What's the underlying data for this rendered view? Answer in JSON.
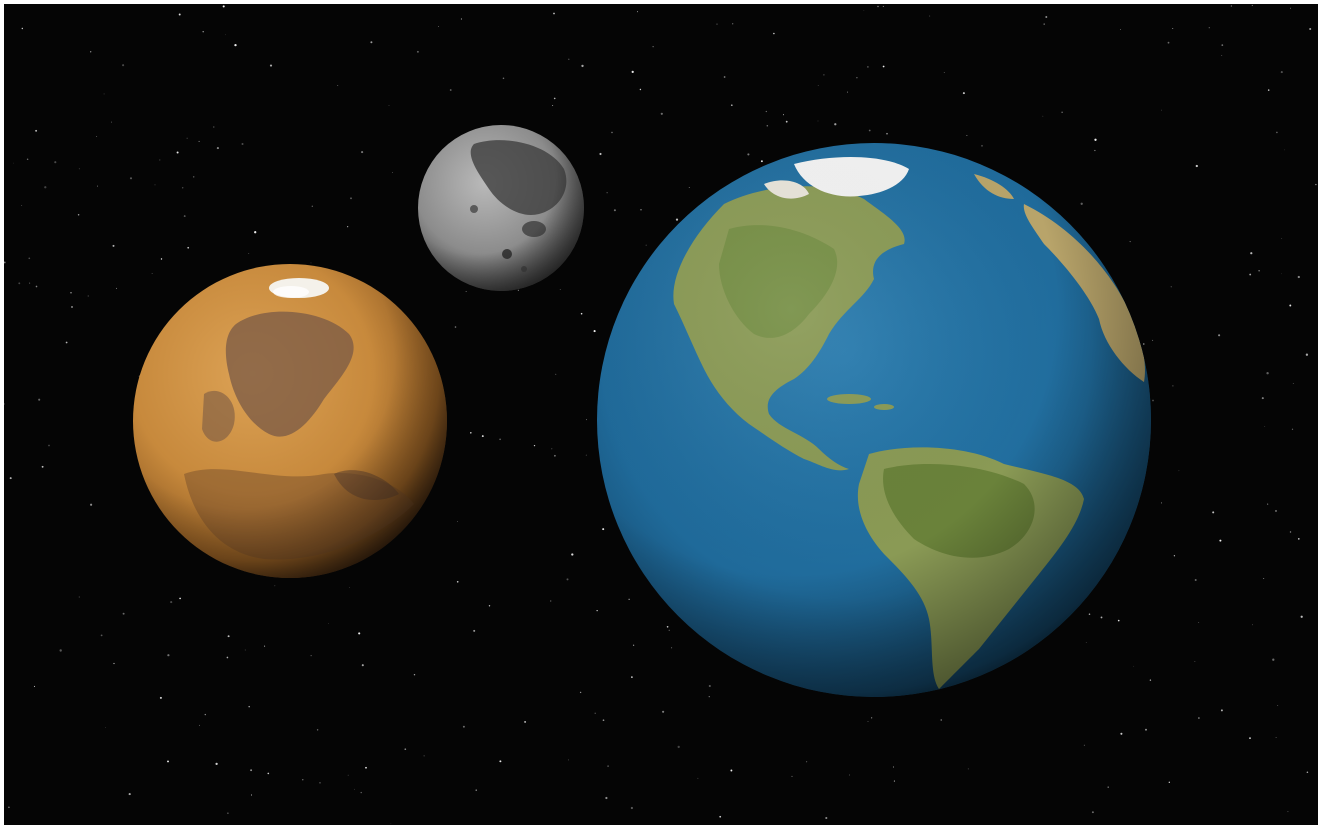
{
  "scene": {
    "background_color": "#050505",
    "frame_color": "#ffffff",
    "star_color": "#ffffff",
    "bodies": [
      {
        "id": "mars",
        "icon": "mars-planet",
        "base_color": "#c7893c",
        "dark_color": "#7a5a45",
        "cap_color": "#f4f1ea"
      },
      {
        "id": "moon",
        "icon": "moon-globe",
        "base_color": "#8c8c8c",
        "dark_color": "#3f3f3f"
      },
      {
        "id": "earth",
        "icon": "earth-planet",
        "ocean_color": "#1f6a9a",
        "land_color": "#8a9a55",
        "ice_color": "#f2f2f2"
      }
    ]
  }
}
